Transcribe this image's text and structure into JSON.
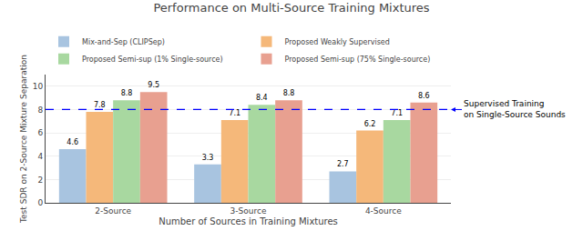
{
  "chart_data": {
    "type": "bar",
    "title": "Performance on Multi-Source Training Mixtures",
    "xlabel": "Number of Sources in Training Mixtures",
    "ylabel": "Test SDR on 2-Source Mixture Separation",
    "categories": [
      "2-Source",
      "3-Source",
      "4-Source"
    ],
    "series": [
      {
        "name": "Mix-and-Sep (CLIPSep)",
        "color": "#a8c4e0",
        "values": [
          4.6,
          3.3,
          2.7
        ]
      },
      {
        "name": "Proposed Weakly Supervised",
        "color": "#f5b87a",
        "values": [
          7.8,
          7.1,
          6.2
        ]
      },
      {
        "name": "Proposed Semi-sup (1% Single-source)",
        "color": "#a8d8a0",
        "values": [
          8.8,
          8.4,
          7.1
        ]
      },
      {
        "name": "Proposed Semi-sup (75% Single-source)",
        "color": "#e8a090",
        "values": [
          9.5,
          8.8,
          8.6
        ]
      }
    ],
    "reference_line": {
      "y": 8.0,
      "color": "#0000ff",
      "label": "Supervised Training\non Single-Source Sounds"
    },
    "ylim": [
      0,
      11
    ],
    "yticks": [
      0,
      2,
      4,
      6,
      8,
      10
    ],
    "grid": true,
    "data_labels": true,
    "legend": "top"
  }
}
